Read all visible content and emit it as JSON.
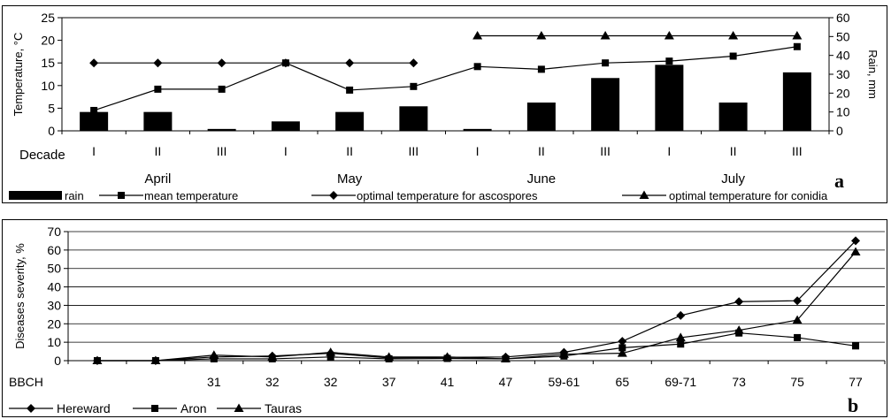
{
  "chart_data": [
    {
      "id": "a",
      "type": "bar+line",
      "panel_letter": "a",
      "decade_row_label": "Decade",
      "categories": [
        "I",
        "II",
        "III",
        "I",
        "II",
        "III",
        "I",
        "II",
        "III",
        "I",
        "II",
        "III"
      ],
      "months": [
        "April",
        "May",
        "June",
        "July"
      ],
      "ylabel_left": "Temperature, °C",
      "ylabel_right": "Rain, mm",
      "ylim_left": [
        0,
        25
      ],
      "yticks_left": [
        0,
        5,
        10,
        15,
        20,
        25
      ],
      "ylim_right": [
        0,
        60
      ],
      "yticks_right": [
        0,
        10,
        20,
        30,
        40,
        50,
        60
      ],
      "series": [
        {
          "name": "rain",
          "kind": "bar",
          "axis": "right",
          "color": "#000000",
          "values": [
            10,
            10,
            1,
            5,
            10,
            13,
            1,
            15,
            28,
            35,
            15,
            31
          ]
        },
        {
          "name": "mean temperature",
          "kind": "line",
          "marker": "square",
          "axis": "left",
          "color": "#000000",
          "values": [
            4.5,
            9.2,
            9.2,
            15.0,
            9.0,
            9.8,
            14.2,
            13.6,
            15.0,
            15.4,
            16.5,
            18.6
          ]
        },
        {
          "name": "optimal temperature for ascospores",
          "kind": "line",
          "marker": "diamond",
          "axis": "left",
          "color": "#000000",
          "values": [
            15,
            15,
            15,
            15,
            15,
            15,
            null,
            null,
            null,
            null,
            null,
            null
          ]
        },
        {
          "name": "optimal temperature for conidia",
          "kind": "line",
          "marker": "triangle",
          "axis": "left",
          "color": "#000000",
          "values": [
            null,
            null,
            null,
            null,
            null,
            null,
            21,
            21,
            21,
            21,
            21,
            21
          ]
        }
      ],
      "legend": [
        "rain",
        "mean temperature",
        "optimal temperature for ascospores",
        "optimal temperature for conidia"
      ],
      "legend_placement": "bottom",
      "grid": false
    },
    {
      "id": "b",
      "type": "line",
      "panel_letter": "b",
      "xlabel": "BBCH",
      "categories": [
        "",
        "",
        "31",
        "32",
        "32",
        "37",
        "41",
        "47",
        "59-61",
        "65",
        "69-71",
        "73",
        "75",
        "77"
      ],
      "ylabel": "Diseases severity, %",
      "ylim": [
        0,
        70
      ],
      "yticks": [
        0,
        10,
        20,
        30,
        40,
        50,
        60,
        70
      ],
      "series": [
        {
          "name": "Hereward",
          "marker": "diamond",
          "color": "#000000",
          "values": [
            0,
            0,
            2,
            2.5,
            4,
            1.5,
            1.8,
            2,
            4.5,
            10.5,
            24.5,
            32,
            32.5,
            65
          ]
        },
        {
          "name": "Aron",
          "marker": "square",
          "color": "#000000",
          "values": [
            0,
            0,
            1,
            1,
            2,
            1,
            1.2,
            1,
            2.5,
            7,
            9,
            15,
            12.5,
            8
          ]
        },
        {
          "name": "Tauras",
          "marker": "triangle",
          "color": "#000000",
          "values": [
            0,
            0,
            3,
            2,
            4.5,
            2,
            2,
            1,
            3.5,
            4,
            12.5,
            16.5,
            22,
            59
          ]
        }
      ],
      "legend": [
        "Hereward",
        "Aron",
        "Tauras"
      ],
      "legend_placement": "bottom-left",
      "grid": "horizontal"
    }
  ]
}
